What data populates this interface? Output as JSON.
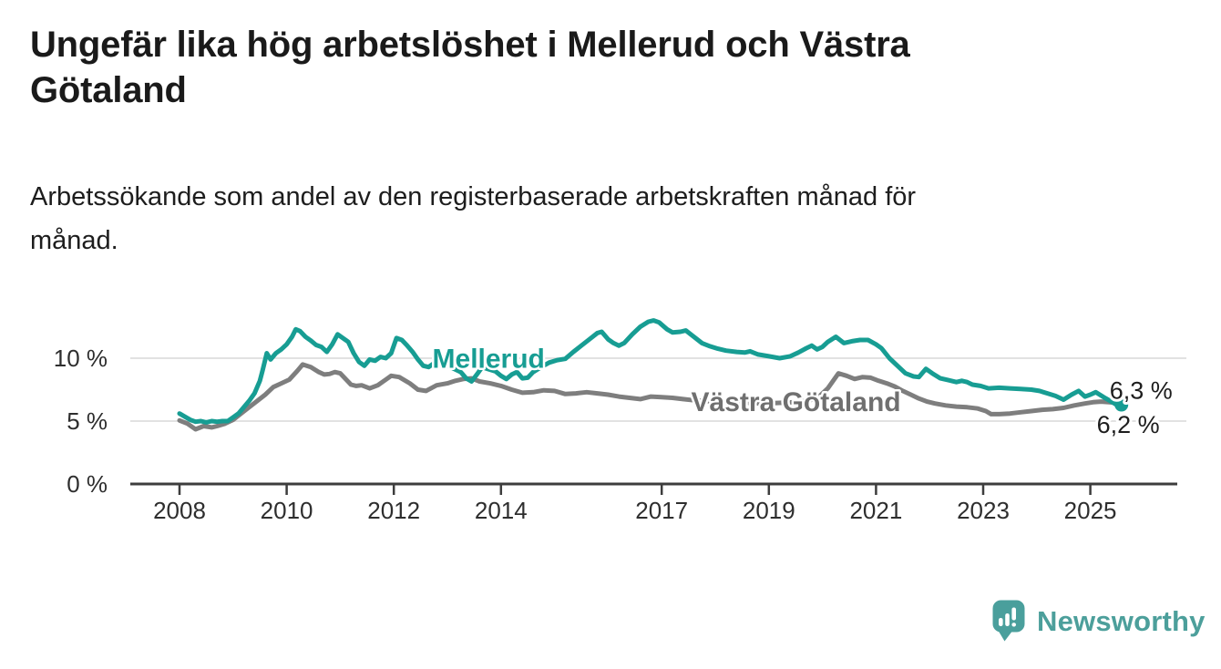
{
  "header": {
    "title_lines": [
      "Ungefär lika hög arbetslöshet i Mellerud och Västra",
      "Götaland"
    ],
    "subtitle_lines": [
      "Arbetssökande som andel av den registerbaserade arbetskraften månad för",
      "månad."
    ]
  },
  "chart_data": {
    "type": "line",
    "title": "Ungefär lika hög arbetslöshet i Mellerud och Västra Götaland",
    "subtitle": "Arbetssökande som andel av den registerbaserade arbetskraften månad för månad.",
    "unit": "%",
    "grid": "horizontal",
    "legend_position": "inline-labels",
    "ylim": [
      0,
      13.5
    ],
    "x_range_years": [
      2008,
      2025.58
    ],
    "y_ticks": [
      {
        "value": 0,
        "label": "0 %"
      },
      {
        "value": 5,
        "label": "5 %"
      },
      {
        "value": 10,
        "label": "10 %"
      }
    ],
    "x_ticks": [
      {
        "year": 2008,
        "label": "2008"
      },
      {
        "year": 2010,
        "label": "2010"
      },
      {
        "year": 2012,
        "label": "2012"
      },
      {
        "year": 2014,
        "label": "2014"
      },
      {
        "year": 2017,
        "label": "2017"
      },
      {
        "year": 2019,
        "label": "2019"
      },
      {
        "year": 2021,
        "label": "2021"
      },
      {
        "year": 2023,
        "label": "2023"
      },
      {
        "year": 2025,
        "label": "2025"
      }
    ],
    "axis_color": "#3d3d3d",
    "gridline_color": "#d9d9d9",
    "tick_label_color": "#2e2e2e",
    "end_label_color": "#1d1d1d",
    "series": [
      {
        "name": "Västra Götaland",
        "color": "#7e7e7e",
        "label_color": "#6f6f6f",
        "label_pos": [
          2017.55,
          5.78
        ],
        "end_label": "6,2 %",
        "end_label_pos": [
          2025.12,
          4.05
        ],
        "end_dot": false,
        "points": [
          [
            2008.0,
            5.05
          ],
          [
            2008.15,
            4.8
          ],
          [
            2008.3,
            4.35
          ],
          [
            2008.45,
            4.6
          ],
          [
            2008.6,
            4.5
          ],
          [
            2008.7,
            4.6
          ],
          [
            2008.85,
            4.8
          ],
          [
            2009.0,
            5.1
          ],
          [
            2009.15,
            5.6
          ],
          [
            2009.3,
            6.1
          ],
          [
            2009.45,
            6.6
          ],
          [
            2009.6,
            7.1
          ],
          [
            2009.75,
            7.7
          ],
          [
            2009.9,
            8.0
          ],
          [
            2010.05,
            8.3
          ],
          [
            2010.2,
            9.0
          ],
          [
            2010.3,
            9.5
          ],
          [
            2010.45,
            9.3
          ],
          [
            2010.6,
            8.9
          ],
          [
            2010.7,
            8.7
          ],
          [
            2010.8,
            8.75
          ],
          [
            2010.9,
            8.9
          ],
          [
            2011.0,
            8.8
          ],
          [
            2011.2,
            7.9
          ],
          [
            2011.3,
            7.8
          ],
          [
            2011.4,
            7.85
          ],
          [
            2011.55,
            7.6
          ],
          [
            2011.7,
            7.85
          ],
          [
            2011.85,
            8.3
          ],
          [
            2011.95,
            8.6
          ],
          [
            2012.1,
            8.5
          ],
          [
            2012.3,
            8.0
          ],
          [
            2012.45,
            7.5
          ],
          [
            2012.6,
            7.4
          ],
          [
            2012.8,
            7.85
          ],
          [
            2013.0,
            8.0
          ],
          [
            2013.15,
            8.2
          ],
          [
            2013.3,
            8.35
          ],
          [
            2013.45,
            8.4
          ],
          [
            2013.6,
            8.15
          ],
          [
            2013.8,
            8.0
          ],
          [
            2014.0,
            7.8
          ],
          [
            2014.2,
            7.5
          ],
          [
            2014.4,
            7.25
          ],
          [
            2014.6,
            7.3
          ],
          [
            2014.8,
            7.45
          ],
          [
            2015.0,
            7.4
          ],
          [
            2015.2,
            7.15
          ],
          [
            2015.4,
            7.2
          ],
          [
            2015.6,
            7.3
          ],
          [
            2015.8,
            7.2
          ],
          [
            2016.0,
            7.1
          ],
          [
            2016.2,
            6.95
          ],
          [
            2016.4,
            6.85
          ],
          [
            2016.6,
            6.75
          ],
          [
            2016.8,
            6.95
          ],
          [
            2017.0,
            6.9
          ],
          [
            2017.2,
            6.85
          ],
          [
            2017.4,
            6.75
          ],
          [
            2017.6,
            6.65
          ],
          [
            2017.8,
            6.6
          ],
          [
            2018.0,
            6.55
          ],
          [
            2018.3,
            6.5
          ],
          [
            2018.6,
            6.45
          ],
          [
            2018.9,
            6.4
          ],
          [
            2019.2,
            6.45
          ],
          [
            2019.5,
            6.5
          ],
          [
            2019.7,
            6.6
          ],
          [
            2019.9,
            6.8
          ],
          [
            2020.1,
            7.6
          ],
          [
            2020.3,
            8.8
          ],
          [
            2020.45,
            8.6
          ],
          [
            2020.6,
            8.35
          ],
          [
            2020.75,
            8.5
          ],
          [
            2020.9,
            8.45
          ],
          [
            2021.05,
            8.2
          ],
          [
            2021.2,
            8.0
          ],
          [
            2021.35,
            7.75
          ],
          [
            2021.5,
            7.4
          ],
          [
            2021.65,
            7.1
          ],
          [
            2021.8,
            6.8
          ],
          [
            2021.95,
            6.55
          ],
          [
            2022.1,
            6.4
          ],
          [
            2022.3,
            6.25
          ],
          [
            2022.5,
            6.15
          ],
          [
            2022.7,
            6.1
          ],
          [
            2022.9,
            6.0
          ],
          [
            2023.05,
            5.8
          ],
          [
            2023.15,
            5.55
          ],
          [
            2023.3,
            5.55
          ],
          [
            2023.5,
            5.6
          ],
          [
            2023.7,
            5.7
          ],
          [
            2023.9,
            5.8
          ],
          [
            2024.1,
            5.9
          ],
          [
            2024.3,
            5.95
          ],
          [
            2024.5,
            6.05
          ],
          [
            2024.7,
            6.25
          ],
          [
            2024.9,
            6.4
          ],
          [
            2025.05,
            6.5
          ],
          [
            2025.2,
            6.55
          ],
          [
            2025.35,
            6.5
          ],
          [
            2025.5,
            6.45
          ],
          [
            2025.58,
            6.2
          ]
        ]
      },
      {
        "name": "Mellerud",
        "color": "#179d93",
        "label_color": "#179d93",
        "label_pos": [
          2012.72,
          9.25
        ],
        "end_label": "6,3 %",
        "end_label_pos": [
          2025.36,
          6.78
        ],
        "end_dot": true,
        "points": [
          [
            2008.0,
            5.6
          ],
          [
            2008.1,
            5.35
          ],
          [
            2008.2,
            5.1
          ],
          [
            2008.3,
            4.95
          ],
          [
            2008.4,
            5.0
          ],
          [
            2008.5,
            4.9
          ],
          [
            2008.6,
            5.0
          ],
          [
            2008.7,
            4.95
          ],
          [
            2008.8,
            5.0
          ],
          [
            2008.9,
            5.0
          ],
          [
            2009.0,
            5.3
          ],
          [
            2009.1,
            5.6
          ],
          [
            2009.2,
            6.1
          ],
          [
            2009.3,
            6.6
          ],
          [
            2009.4,
            7.2
          ],
          [
            2009.5,
            8.2
          ],
          [
            2009.55,
            9.0
          ],
          [
            2009.63,
            10.4
          ],
          [
            2009.7,
            9.9
          ],
          [
            2009.8,
            10.4
          ],
          [
            2009.9,
            10.7
          ],
          [
            2010.0,
            11.1
          ],
          [
            2010.1,
            11.7
          ],
          [
            2010.17,
            12.3
          ],
          [
            2010.25,
            12.15
          ],
          [
            2010.35,
            11.7
          ],
          [
            2010.45,
            11.4
          ],
          [
            2010.55,
            11.05
          ],
          [
            2010.65,
            10.9
          ],
          [
            2010.75,
            10.5
          ],
          [
            2010.85,
            11.1
          ],
          [
            2010.95,
            11.9
          ],
          [
            2011.05,
            11.6
          ],
          [
            2011.15,
            11.3
          ],
          [
            2011.25,
            10.4
          ],
          [
            2011.35,
            9.7
          ],
          [
            2011.45,
            9.4
          ],
          [
            2011.55,
            9.9
          ],
          [
            2011.65,
            9.8
          ],
          [
            2011.75,
            10.1
          ],
          [
            2011.85,
            10.0
          ],
          [
            2011.95,
            10.4
          ],
          [
            2012.05,
            11.6
          ],
          [
            2012.15,
            11.45
          ],
          [
            2012.25,
            11.0
          ],
          [
            2012.35,
            10.5
          ],
          [
            2012.45,
            9.9
          ],
          [
            2012.55,
            9.4
          ],
          [
            2012.65,
            9.3
          ],
          [
            2012.75,
            9.6
          ],
          [
            2012.85,
            9.8
          ],
          [
            2012.95,
            9.5
          ],
          [
            2013.1,
            9.2
          ],
          [
            2013.25,
            8.9
          ],
          [
            2013.35,
            8.4
          ],
          [
            2013.45,
            8.15
          ],
          [
            2013.55,
            8.7
          ],
          [
            2013.65,
            9.3
          ],
          [
            2013.75,
            9.15
          ],
          [
            2013.9,
            8.95
          ],
          [
            2014.0,
            8.6
          ],
          [
            2014.1,
            8.35
          ],
          [
            2014.2,
            8.7
          ],
          [
            2014.3,
            8.9
          ],
          [
            2014.4,
            8.4
          ],
          [
            2014.5,
            8.45
          ],
          [
            2014.6,
            8.9
          ],
          [
            2014.75,
            9.3
          ],
          [
            2014.9,
            9.65
          ],
          [
            2015.05,
            9.85
          ],
          [
            2015.2,
            9.95
          ],
          [
            2015.35,
            10.5
          ],
          [
            2015.5,
            11.0
          ],
          [
            2015.65,
            11.5
          ],
          [
            2015.8,
            12.0
          ],
          [
            2015.88,
            12.1
          ],
          [
            2016.0,
            11.5
          ],
          [
            2016.1,
            11.2
          ],
          [
            2016.2,
            11.0
          ],
          [
            2016.3,
            11.2
          ],
          [
            2016.45,
            11.9
          ],
          [
            2016.6,
            12.5
          ],
          [
            2016.75,
            12.9
          ],
          [
            2016.85,
            13.0
          ],
          [
            2016.95,
            12.85
          ],
          [
            2017.1,
            12.3
          ],
          [
            2017.2,
            12.05
          ],
          [
            2017.35,
            12.1
          ],
          [
            2017.45,
            12.2
          ],
          [
            2017.6,
            11.7
          ],
          [
            2017.75,
            11.2
          ],
          [
            2017.9,
            10.95
          ],
          [
            2018.05,
            10.75
          ],
          [
            2018.2,
            10.6
          ],
          [
            2018.4,
            10.5
          ],
          [
            2018.55,
            10.45
          ],
          [
            2018.65,
            10.55
          ],
          [
            2018.8,
            10.3
          ],
          [
            2019.0,
            10.15
          ],
          [
            2019.2,
            10.0
          ],
          [
            2019.4,
            10.15
          ],
          [
            2019.55,
            10.45
          ],
          [
            2019.7,
            10.8
          ],
          [
            2019.8,
            11.0
          ],
          [
            2019.9,
            10.7
          ],
          [
            2020.0,
            10.9
          ],
          [
            2020.1,
            11.3
          ],
          [
            2020.25,
            11.7
          ],
          [
            2020.4,
            11.2
          ],
          [
            2020.55,
            11.35
          ],
          [
            2020.7,
            11.45
          ],
          [
            2020.85,
            11.45
          ],
          [
            2021.0,
            11.1
          ],
          [
            2021.1,
            10.8
          ],
          [
            2021.25,
            10.0
          ],
          [
            2021.4,
            9.4
          ],
          [
            2021.55,
            8.8
          ],
          [
            2021.7,
            8.55
          ],
          [
            2021.8,
            8.5
          ],
          [
            2021.93,
            9.15
          ],
          [
            2022.05,
            8.8
          ],
          [
            2022.2,
            8.4
          ],
          [
            2022.35,
            8.25
          ],
          [
            2022.5,
            8.1
          ],
          [
            2022.6,
            8.2
          ],
          [
            2022.7,
            8.1
          ],
          [
            2022.8,
            7.9
          ],
          [
            2022.95,
            7.8
          ],
          [
            2023.1,
            7.6
          ],
          [
            2023.3,
            7.65
          ],
          [
            2023.5,
            7.6
          ],
          [
            2023.7,
            7.55
          ],
          [
            2023.9,
            7.5
          ],
          [
            2024.05,
            7.4
          ],
          [
            2024.2,
            7.2
          ],
          [
            2024.35,
            7.0
          ],
          [
            2024.5,
            6.7
          ],
          [
            2024.65,
            7.1
          ],
          [
            2024.78,
            7.4
          ],
          [
            2024.9,
            6.95
          ],
          [
            2025.0,
            7.1
          ],
          [
            2025.1,
            7.3
          ],
          [
            2025.25,
            6.9
          ],
          [
            2025.35,
            6.65
          ],
          [
            2025.45,
            6.4
          ],
          [
            2025.52,
            6.2
          ],
          [
            2025.58,
            6.3
          ]
        ]
      }
    ]
  },
  "logo": {
    "text": "Newsworthy",
    "text_color": "#4c9f9b",
    "icon_color": "#4a9f9c",
    "icon": "newsworthy-speech-bubble-chart-icon"
  }
}
